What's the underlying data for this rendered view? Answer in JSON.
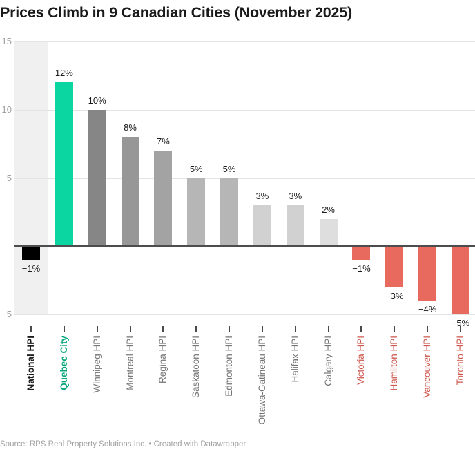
{
  "title": "Prices Climb in 9 Canadian Cities (November 2025)",
  "footer": "Source: RPS Real Property Solutions Inc. • Created with Datawrapper",
  "colors": {
    "background": "#ffffff",
    "title_text": "#1a1a1a",
    "highlight_band": "#f0f0f0",
    "gridline": "#e4e4e4",
    "zero_baseline": "#4d4d4d",
    "axis_tick_text": "#a0a0a0",
    "value_label_text": "#1a1a1a",
    "footer_text": "#a2a2a2",
    "positive_accent": "#0bd6a1",
    "negative_accent": "#e8695e"
  },
  "chart_data": {
    "type": "bar",
    "title": "Prices Climb in 9 Canadian Cities (November 2025)",
    "xlabel": "",
    "ylabel": "",
    "ylim": [
      -5,
      15
    ],
    "grid": true,
    "categories": [
      "National HPI",
      "Quebec City",
      "Winnipeg HPI",
      "Montreal HPI",
      "Regina HPI",
      "Saskatoon HPI",
      "Edmonton HPI",
      "Ottawa-Gatineau HPI",
      "Halifax HPI",
      "Calgary HPI",
      "Victoria HPI",
      "Hamilton HPI",
      "Vancouver HPI",
      "Toronto HPI"
    ],
    "values": [
      -1,
      12,
      10,
      8,
      7,
      5,
      5,
      3,
      3,
      2,
      -1,
      -3,
      -4,
      -5
    ],
    "value_labels": [
      "−1%",
      "12%",
      "10%",
      "8%",
      "7%",
      "5%",
      "5%",
      "3%",
      "3%",
      "2%",
      "−1%",
      "−3%",
      "−4%",
      "−5%"
    ],
    "bar_colors": [
      "#000000",
      "#0bd6a1",
      "#868686",
      "#979797",
      "#a3a3a3",
      "#b6b6b6",
      "#b6b6b6",
      "#d1d1d1",
      "#d1d1d1",
      "#dedede",
      "#e8695e",
      "#e8695e",
      "#e8695e",
      "#e8695e"
    ],
    "label_colors": [
      "#1a1a1a",
      "#0aa87e",
      "#757575",
      "#757575",
      "#757575",
      "#757575",
      "#757575",
      "#757575",
      "#757575",
      "#757575",
      "#ce584c",
      "#ce584c",
      "#ce584c",
      "#ce584c"
    ],
    "label_bold": [
      true,
      true,
      false,
      false,
      false,
      false,
      false,
      false,
      false,
      false,
      false,
      false,
      false,
      false
    ],
    "y_ticks": [
      {
        "value": 15,
        "label": "15"
      },
      {
        "value": 10,
        "label": "10"
      },
      {
        "value": 5,
        "label": "5"
      },
      {
        "value": 0,
        "label": ""
      },
      {
        "value": -5,
        "label": "−5"
      }
    ],
    "highlighted_category": "National HPI",
    "legend_position": "none"
  }
}
